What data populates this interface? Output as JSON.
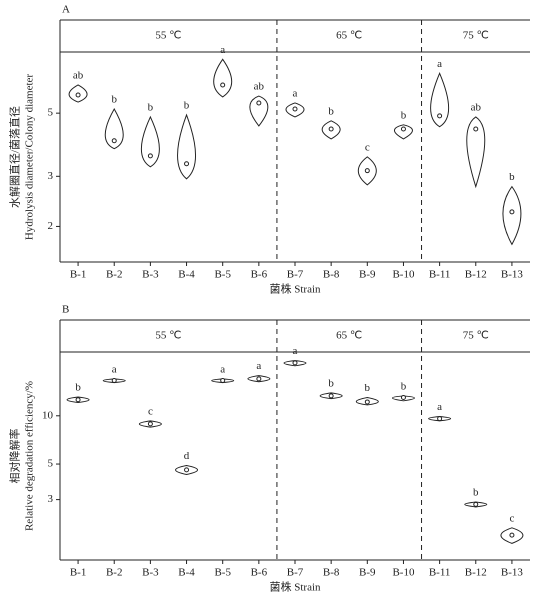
{
  "chart_data": [
    {
      "type": "violin",
      "panel": "A",
      "log": true,
      "ylabel": [
        "水解圈直径/菌落直径",
        "Hydrolysis diameter/Colony diameter"
      ],
      "xlabel": "菌株 Strain",
      "ylim": [
        1.5,
        8.2
      ],
      "yticks": [
        2,
        3,
        5
      ],
      "facets": [
        {
          "label": "55 ℃",
          "categories": [
            "B-1",
            "B-2",
            "B-3",
            "B-4",
            "B-5",
            "B-6"
          ],
          "median": [
            5.79,
            4.0,
            3.54,
            3.32,
            6.28,
            5.43
          ],
          "min": [
            5.47,
            3.75,
            3.24,
            2.94,
            5.7,
            4.51
          ],
          "max": [
            6.28,
            5.17,
            4.85,
            4.93,
            7.73,
            5.74
          ],
          "letters": [
            "ab",
            "b",
            "b",
            "b",
            "a",
            "ab"
          ]
        },
        {
          "label": "65 ℃",
          "categories": [
            "B-7",
            "B-8",
            "B-9",
            "B-10"
          ],
          "median": [
            5.17,
            4.4,
            3.14,
            4.4
          ],
          "min": [
            4.85,
            4.06,
            2.8,
            4.06
          ],
          "max": [
            5.43,
            4.7,
            3.51,
            4.55
          ],
          "letters": [
            "a",
            "b",
            "c",
            "b"
          ]
        },
        {
          "label": "75 ℃",
          "categories": [
            "B-11",
            "B-12",
            "B-13"
          ],
          "median": [
            4.89,
            4.4,
            2.25
          ],
          "min": [
            4.48,
            2.76,
            1.73
          ],
          "max": [
            6.9,
            4.85,
            2.76
          ],
          "letters": [
            "a",
            "ab",
            "b"
          ]
        }
      ]
    },
    {
      "type": "violin",
      "panel": "B",
      "log": true,
      "ylabel": [
        "相对降解率",
        "Relative degradation efficiency/%"
      ],
      "xlabel": "菌株 Strain",
      "ylim": [
        1.26,
        25
      ],
      "yticks": [
        3,
        5,
        10
      ],
      "facets": [
        {
          "label": "55 ℃",
          "categories": [
            "B-1",
            "B-2",
            "B-3",
            "B-4",
            "B-5",
            "B-6"
          ],
          "median": [
            12.6,
            16.6,
            8.9,
            4.6,
            16.6,
            17.0
          ],
          "min": [
            12.1,
            16.1,
            8.5,
            4.3,
            16.1,
            16.3
          ],
          "max": [
            13.1,
            17.0,
            9.3,
            4.9,
            17.0,
            17.8
          ],
          "letters": [
            "b",
            "a",
            "c",
            "d",
            "a",
            "a"
          ]
        },
        {
          "label": "65 ℃",
          "categories": [
            "B-7",
            "B-8",
            "B-9",
            "B-10"
          ],
          "median": [
            21.4,
            13.3,
            12.2,
            13.0
          ],
          "min": [
            20.5,
            12.8,
            11.7,
            12.4
          ],
          "max": [
            22.1,
            13.9,
            13.0,
            13.3
          ],
          "letters": [
            "a",
            "b",
            "b",
            "b"
          ]
        },
        {
          "label": "75 ℃",
          "categories": [
            "B-11",
            "B-12",
            "B-13"
          ],
          "median": [
            9.6,
            2.8,
            1.8
          ],
          "min": [
            9.3,
            2.7,
            1.6
          ],
          "max": [
            9.9,
            2.9,
            2.0
          ],
          "letters": [
            "a",
            "b",
            "c"
          ]
        }
      ]
    }
  ]
}
